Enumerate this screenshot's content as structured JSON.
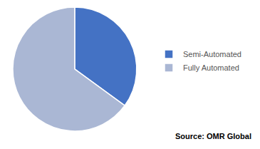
{
  "chart_data": {
    "type": "pie",
    "categories": [
      "Semi-Automated",
      "Fully Automated"
    ],
    "values": [
      35,
      65
    ],
    "colors": [
      "#4472c4",
      "#aab7d4"
    ],
    "legend": "right",
    "annotations": [
      "Source: OMR Global"
    ]
  }
}
